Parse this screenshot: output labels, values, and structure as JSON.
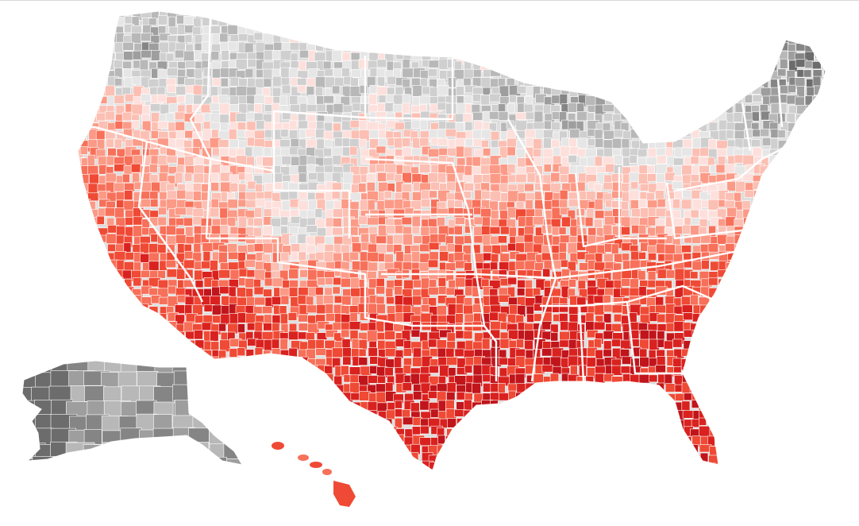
{
  "map": {
    "type": "choropleth",
    "geography": "US counties",
    "palette": {
      "background": "#ffffff",
      "gray_scale": [
        "#e6e6e6",
        "#cfcfcf",
        "#b8b8b8",
        "#9e9e9e",
        "#858585",
        "#6c6c6c"
      ],
      "red_scale": [
        "#fde0dc",
        "#fcbfb3",
        "#fb9a87",
        "#f7705a",
        "#ef4a35",
        "#d9221f",
        "#c0151b"
      ],
      "borders": "#ffffff"
    },
    "regions": [
      {
        "id": "pacific-northwest",
        "tone": "gray",
        "level": 3
      },
      {
        "id": "northern-plains",
        "tone": "gray",
        "level": 2
      },
      {
        "id": "mountain-west",
        "tone": "gray",
        "level": 2
      },
      {
        "id": "great-lakes",
        "tone": "gray",
        "level": 3
      },
      {
        "id": "new-england",
        "tone": "gray",
        "level": 4
      },
      {
        "id": "mid-atlantic",
        "tone": "red",
        "level": 1
      },
      {
        "id": "central-plains",
        "tone": "red",
        "level": 2
      },
      {
        "id": "california-coast",
        "tone": "red",
        "level": 3
      },
      {
        "id": "desert-southwest",
        "tone": "red",
        "level": 5
      },
      {
        "id": "ozarks-midsouth",
        "tone": "red",
        "level": 5
      },
      {
        "id": "appalachia",
        "tone": "red",
        "level": 4
      },
      {
        "id": "texas",
        "tone": "red",
        "level": 5
      },
      {
        "id": "deep-south",
        "tone": "red",
        "level": 6
      },
      {
        "id": "carolinas",
        "tone": "red",
        "level": 4
      },
      {
        "id": "florida",
        "tone": "red",
        "level": 5
      },
      {
        "id": "alaska",
        "tone": "gray",
        "level": 4
      },
      {
        "id": "hawaii",
        "tone": "red",
        "level": 4
      }
    ]
  }
}
